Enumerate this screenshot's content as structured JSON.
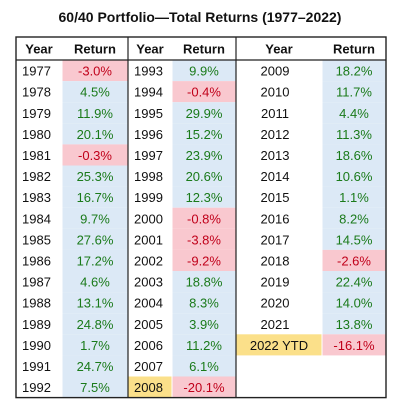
{
  "title": "60/40 Portfolio—Total Returns (1977–2022)",
  "headers": {
    "year": "Year",
    "return": "Return"
  },
  "colors": {
    "positive_text": "#1a7a1a",
    "negative_text": "#c0001a",
    "positive_fill": "#dce9f6",
    "negative_fill": "#f9c8cf",
    "highlight_year_fill": "#fbe08a",
    "border": "#222222"
  },
  "chart_data": {
    "type": "table",
    "title": "60/40 Portfolio—Total Returns (1977–2022)",
    "columns": [
      "Year",
      "Return"
    ],
    "blocks": [
      [
        {
          "year": "1977",
          "text": "-3.0%",
          "value": -3.0
        },
        {
          "year": "1978",
          "text": "4.5%",
          "value": 4.5
        },
        {
          "year": "1979",
          "text": "11.9%",
          "value": 11.9
        },
        {
          "year": "1980",
          "text": "20.1%",
          "value": 20.1
        },
        {
          "year": "1981",
          "text": "-0.3%",
          "value": -0.3
        },
        {
          "year": "1982",
          "text": "25.3%",
          "value": 25.3
        },
        {
          "year": "1983",
          "text": "16.7%",
          "value": 16.7
        },
        {
          "year": "1984",
          "text": "9.7%",
          "value": 9.7
        },
        {
          "year": "1985",
          "text": "27.6%",
          "value": 27.6
        },
        {
          "year": "1986",
          "text": "17.2%",
          "value": 17.2
        },
        {
          "year": "1987",
          "text": "4.6%",
          "value": 4.6
        },
        {
          "year": "1988",
          "text": "13.1%",
          "value": 13.1
        },
        {
          "year": "1989",
          "text": "24.8%",
          "value": 24.8
        },
        {
          "year": "1990",
          "text": "1.7%",
          "value": 1.7
        },
        {
          "year": "1991",
          "text": "24.7%",
          "value": 24.7
        },
        {
          "year": "1992",
          "text": "7.5%",
          "value": 7.5
        }
      ],
      [
        {
          "year": "1993",
          "text": "9.9%",
          "value": 9.9
        },
        {
          "year": "1994",
          "text": "-0.4%",
          "value": -0.4
        },
        {
          "year": "1995",
          "text": "29.9%",
          "value": 29.9
        },
        {
          "year": "1996",
          "text": "15.2%",
          "value": 15.2
        },
        {
          "year": "1997",
          "text": "23.9%",
          "value": 23.9
        },
        {
          "year": "1998",
          "text": "20.6%",
          "value": 20.6
        },
        {
          "year": "1999",
          "text": "12.3%",
          "value": 12.3
        },
        {
          "year": "2000",
          "text": "-0.8%",
          "value": -0.8
        },
        {
          "year": "2001",
          "text": "-3.8%",
          "value": -3.8
        },
        {
          "year": "2002",
          "text": "-9.2%",
          "value": -9.2
        },
        {
          "year": "2003",
          "text": "18.8%",
          "value": 18.8
        },
        {
          "year": "2004",
          "text": "8.3%",
          "value": 8.3
        },
        {
          "year": "2005",
          "text": "3.9%",
          "value": 3.9
        },
        {
          "year": "2006",
          "text": "11.2%",
          "value": 11.2
        },
        {
          "year": "2007",
          "text": "6.1%",
          "value": 6.1
        },
        {
          "year": "2008",
          "text": "-20.1%",
          "value": -20.1,
          "highlight": true
        }
      ],
      [
        {
          "year": "2009",
          "text": "18.2%",
          "value": 18.2
        },
        {
          "year": "2010",
          "text": "11.7%",
          "value": 11.7
        },
        {
          "year": "2011",
          "text": "4.4%",
          "value": 4.4
        },
        {
          "year": "2012",
          "text": "11.3%",
          "value": 11.3
        },
        {
          "year": "2013",
          "text": "18.6%",
          "value": 18.6
        },
        {
          "year": "2014",
          "text": "10.6%",
          "value": 10.6
        },
        {
          "year": "2015",
          "text": "1.1%",
          "value": 1.1
        },
        {
          "year": "2016",
          "text": "8.2%",
          "value": 8.2
        },
        {
          "year": "2017",
          "text": "14.5%",
          "value": 14.5
        },
        {
          "year": "2018",
          "text": "-2.6%",
          "value": -2.6
        },
        {
          "year": "2019",
          "text": "22.4%",
          "value": 22.4
        },
        {
          "year": "2020",
          "text": "14.0%",
          "value": 14.0
        },
        {
          "year": "2021",
          "text": "13.8%",
          "value": 13.8
        },
        {
          "year": "2022 YTD",
          "text": "-16.1%",
          "value": -16.1,
          "highlight": true
        }
      ]
    ]
  }
}
